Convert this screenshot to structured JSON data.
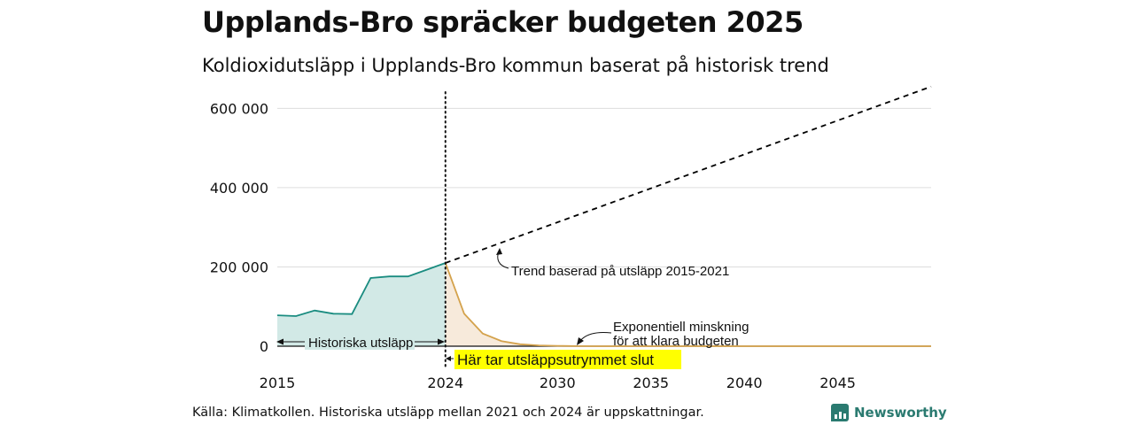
{
  "header": {
    "title": "Upplands-Bro spräcker budgeten 2025",
    "subtitle": "Koldioxidutsläpp i Upplands-Bro kommun baserat på historisk trend"
  },
  "footer": {
    "source": "Källa: Klimatkollen. Historiska utsläpp mellan 2021 och 2024 är uppskattningar.",
    "brand": "Newsworthy"
  },
  "colors": {
    "historical_line": "#1a8c80",
    "historical_fill": "#d2e9e6",
    "budget_line": "#d4a24c",
    "budget_fill": "#f7eadb",
    "trend_line": "#000000",
    "gridline": "#dddddd",
    "highlight_bg": "#ffff00",
    "brand": "#2a7a70"
  },
  "chart_data": {
    "type": "area",
    "title": "Upplands-Bro spräcker budgeten 2025",
    "subtitle": "Koldioxidutsläpp i Upplands-Bro kommun baserat på historisk trend",
    "xlabel": "",
    "ylabel": "",
    "xlim": [
      2015,
      2050
    ],
    "ylim": [
      0,
      650000
    ],
    "grid": true,
    "x_ticks": [
      2015,
      2024,
      2030,
      2035,
      2040,
      2045
    ],
    "x_tick_labels": [
      "2015",
      "2024",
      "2030",
      "2035",
      "2040",
      "2045"
    ],
    "y_ticks": [
      0,
      200000,
      400000,
      600000
    ],
    "y_tick_labels": [
      "0",
      "200 000",
      "400 000",
      "600 000"
    ],
    "series": [
      {
        "x": [
          2015,
          2016,
          2017,
          2018,
          2019,
          2020,
          2021,
          2022,
          2023,
          2024
        ],
        "values": [
          78000,
          76000,
          90000,
          82000,
          81000,
          172000,
          176000,
          176000,
          193000,
          210000
        ]
      },
      {
        "x": [
          2024,
          2025,
          2026,
          2027,
          2028,
          2029,
          2030,
          2031,
          2032,
          2035,
          2040,
          2045,
          2050
        ],
        "values": [
          210000,
          82000,
          32000,
          13000,
          5000,
          2000,
          800,
          300,
          100,
          0,
          0,
          0,
          0
        ]
      },
      {
        "x": [
          2024,
          2050
        ],
        "values": [
          210000,
          655000
        ]
      }
    ],
    "markers": [
      {
        "x": 2024,
        "style": "dotted"
      }
    ],
    "annotations": {
      "historical": "Historiska utsläpp",
      "budget_end": "Här tar utsläppsutrymmet slut",
      "trend": "Trend baserad på utsläpp 2015-2021",
      "exponential_line1": "Exponentiell minskning",
      "exponential_line2": "för att klara budgeten"
    }
  }
}
